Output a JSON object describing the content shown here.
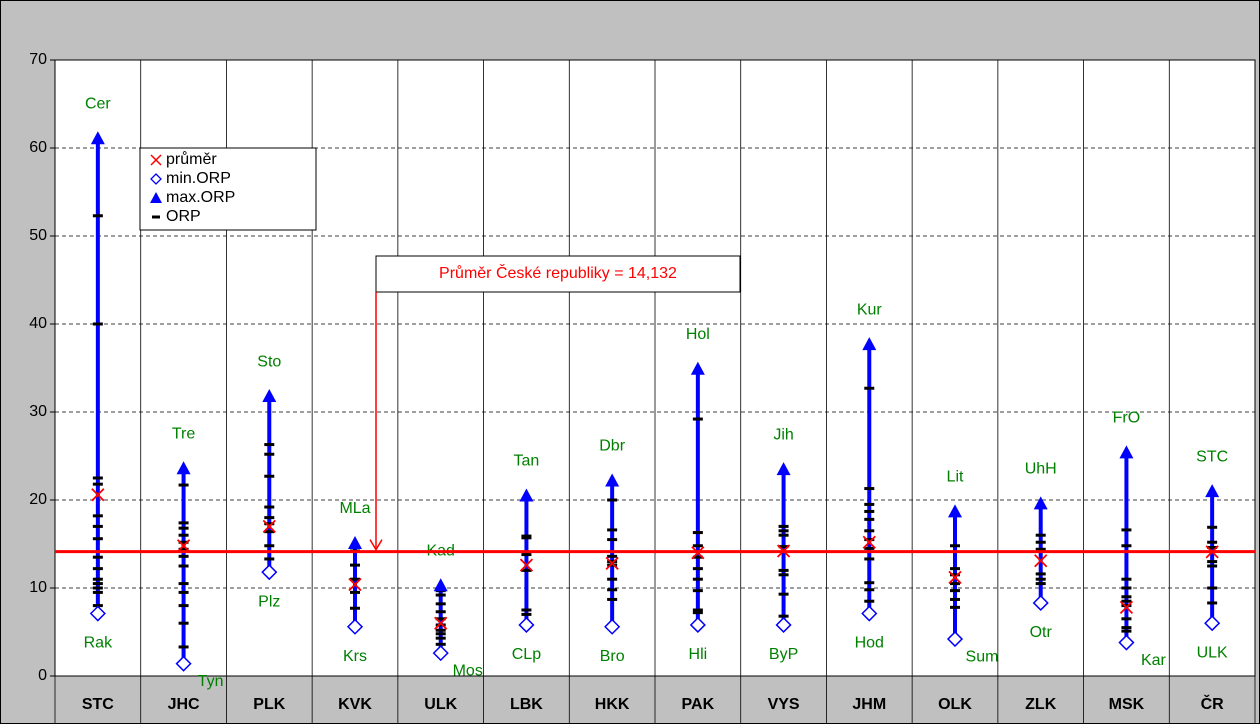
{
  "chart_data": {
    "type": "range",
    "categories": [
      "STC",
      "JHC",
      "PLK",
      "KVK",
      "ULK",
      "LBK",
      "HKK",
      "PAK",
      "VYS",
      "JHM",
      "OLK",
      "ZLK",
      "MSK",
      "ČR"
    ],
    "ylim": [
      0,
      70
    ],
    "yticks": [
      0,
      10,
      20,
      30,
      40,
      50,
      60,
      70
    ],
    "grid": true,
    "series": [
      {
        "name": "průměr",
        "color": "#ff0000",
        "values": [
          20.6,
          14.8,
          17.0,
          10.4,
          6.0,
          12.6,
          12.8,
          14.0,
          14.2,
          15.2,
          11.2,
          13.1,
          7.8,
          14.1
        ]
      },
      {
        "name": "min.ORP",
        "color": "#0000ff",
        "values": [
          7.1,
          1.4,
          11.8,
          5.6,
          2.6,
          5.8,
          5.6,
          5.8,
          5.8,
          7.1,
          4.2,
          8.3,
          3.8,
          6.0
        ]
      },
      {
        "name": "max.ORP",
        "color": "#0000ff",
        "values": [
          61.0,
          23.5,
          31.7,
          15.0,
          10.2,
          20.4,
          22.1,
          34.8,
          23.4,
          37.6,
          18.6,
          19.5,
          25.3,
          20.9
        ]
      },
      {
        "name": "ORP",
        "color": "#000000",
        "values": [
          [
            52.3,
            40,
            22.5,
            21.8,
            18.2,
            17,
            15.6,
            13.5,
            12.2,
            11,
            10.5,
            10,
            9.5,
            8
          ],
          [
            21.7,
            17.4,
            16.8,
            16,
            15.2,
            14.4,
            13.6,
            12.5,
            10.5,
            9.5,
            8,
            6,
            3.3
          ],
          [
            26.3,
            25.2,
            22.7,
            19.2,
            18,
            17.3,
            16.4,
            14.8,
            13.3
          ],
          [
            14.2,
            12.6,
            11,
            9.5,
            7.7
          ],
          [
            9.7,
            9.2,
            8.2,
            7.3,
            6.5,
            5.8,
            5.2,
            4.8,
            4.3,
            3.6
          ],
          [
            15.9,
            15.7,
            13.8,
            12,
            7.5,
            7
          ],
          [
            20,
            16.6,
            15.5,
            13.6,
            13,
            12.6,
            11,
            9.8,
            8.7
          ],
          [
            29.2,
            16.3,
            14.8,
            13.5,
            12.2,
            11,
            9.7,
            7.5,
            7.2
          ],
          [
            17,
            16.5,
            16,
            14.7,
            12,
            11.5,
            9.3,
            6.8
          ],
          [
            32.7,
            21.3,
            19.5,
            18.7,
            17.8,
            16.5,
            15.5,
            14.5,
            13.3,
            10.6,
            9.8,
            8.5
          ],
          [
            14.8,
            12.2,
            11.5,
            10.5,
            9.7,
            8.7,
            7.8
          ],
          [
            16,
            15.2,
            14.4,
            11.6,
            11,
            10.5
          ],
          [
            16.6,
            14.8,
            11,
            10,
            9,
            8.5,
            8,
            6.5,
            5.5,
            5.1
          ],
          [
            16.9,
            15.2,
            14.6,
            13,
            12.5,
            10,
            8.3
          ]
        ]
      }
    ],
    "max_labels": [
      "Cer",
      "Tre",
      "Sto",
      "MLa",
      "Kad",
      "Tan",
      "Dbr",
      "Hol",
      "Jih",
      "Kur",
      "Lit",
      "UhH",
      "FrO",
      "STC"
    ],
    "min_labels": [
      "Rak",
      "Tyn",
      "Plz",
      "Krs",
      "Mos",
      "CLp",
      "Bro",
      "Hli",
      "ByP",
      "Hod",
      "Sum",
      "Otr",
      "Kar",
      "ULK"
    ],
    "reference_line": {
      "label": "Průměr České republiky = 14,132",
      "value": 14.132,
      "color": "#ff0000"
    }
  }
}
